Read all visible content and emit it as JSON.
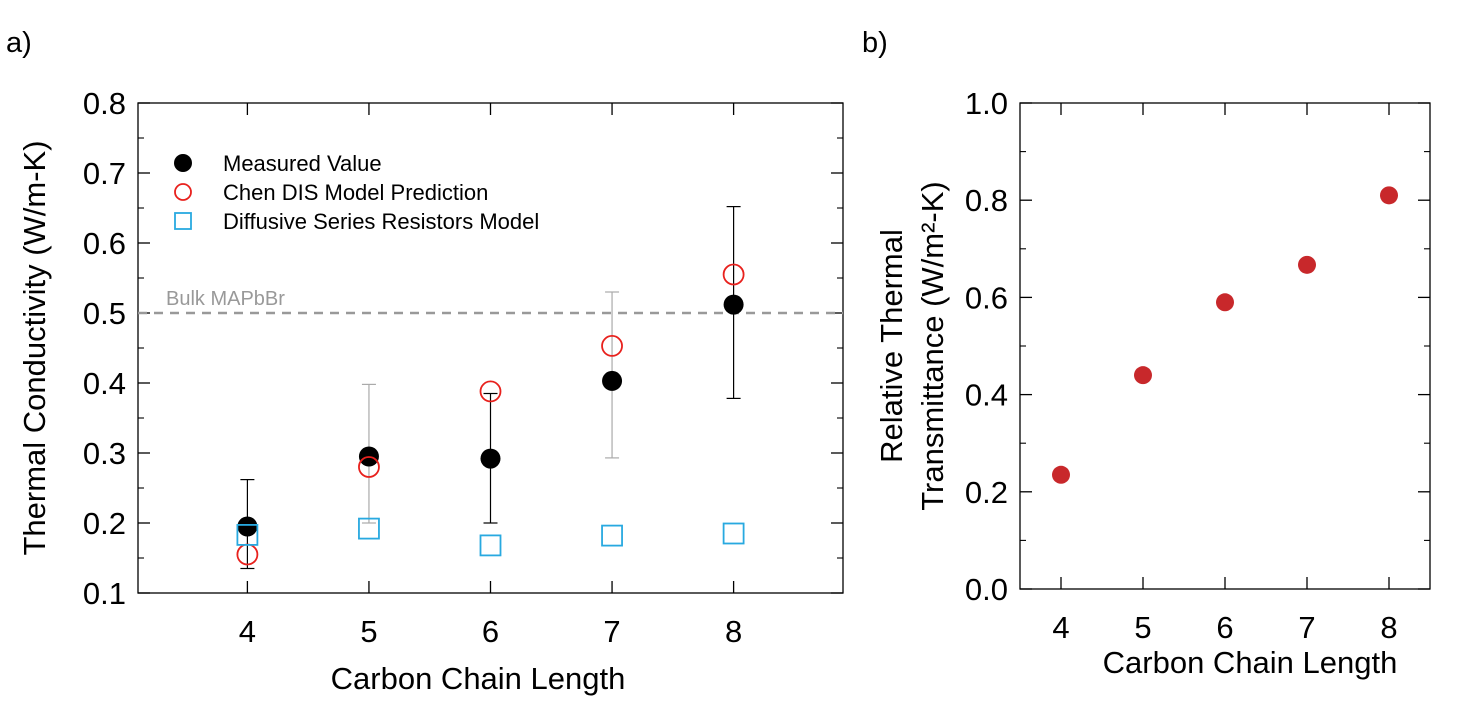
{
  "panels": {
    "a": {
      "label": "a)",
      "reference_line": {
        "label": "Bulk MAPbBr",
        "value": 0.5,
        "color": "#999999"
      }
    },
    "b": {
      "label": "b)"
    }
  },
  "chart_data": [
    {
      "type": "scatter",
      "xlabel": "Carbon Chain Length",
      "ylabel": "Thermal Conductivity (W/m-K)",
      "xlim": [
        3.1,
        8.9
      ],
      "ylim": [
        0.1,
        0.8
      ],
      "x_ticks": [
        4,
        5,
        6,
        7,
        8
      ],
      "y_ticks": [
        0.1,
        0.2,
        0.3,
        0.4,
        0.5,
        0.6,
        0.7,
        0.8
      ],
      "y_tick_labels": [
        "0.1",
        "0.2",
        "0.3",
        "0.4",
        "0.5",
        "0.6",
        "0.7",
        "0.8"
      ],
      "legend_position": "top-left",
      "series": [
        {
          "name": "Measured Value",
          "marker": "filled-circle",
          "color": "#000000",
          "x": [
            4,
            5,
            6,
            7,
            8
          ],
          "y": [
            0.195,
            0.295,
            0.292,
            0.403,
            0.512
          ],
          "error_low": [
            0.135,
            0.2,
            0.2,
            0.293,
            0.378
          ],
          "error_high": [
            0.262,
            0.398,
            0.385,
            0.53,
            0.652
          ]
        },
        {
          "name": "Chen DIS Model Prediction",
          "marker": "open-circle",
          "color": "#e8211d",
          "x": [
            4,
            5,
            6,
            7,
            8
          ],
          "y": [
            0.155,
            0.28,
            0.388,
            0.453,
            0.555
          ]
        },
        {
          "name": "Diffusive Series Resistors Model",
          "marker": "open-square",
          "color": "#28a9e0",
          "x": [
            4,
            5,
            6,
            7,
            8
          ],
          "y": [
            0.183,
            0.192,
            0.168,
            0.182,
            0.185
          ]
        }
      ]
    },
    {
      "type": "scatter",
      "xlabel": "Carbon Chain Length",
      "ylabel_line1": "Relative Thermal",
      "ylabel_line2": "Transmittance (W/m²-K)",
      "xlim": [
        3.5,
        8.5
      ],
      "ylim": [
        0.0,
        1.0
      ],
      "x_ticks": [
        4,
        5,
        6,
        7,
        8
      ],
      "y_ticks": [
        0.0,
        0.2,
        0.4,
        0.6,
        0.8,
        1.0
      ],
      "y_tick_labels": [
        "0.0",
        "0.2",
        "0.4",
        "0.6",
        "0.8",
        "1.0"
      ],
      "series": [
        {
          "marker": "filled-circle",
          "color": "#c8282b",
          "x": [
            4,
            5,
            6,
            7,
            8
          ],
          "y": [
            0.235,
            0.44,
            0.59,
            0.667,
            0.81
          ]
        }
      ]
    }
  ]
}
